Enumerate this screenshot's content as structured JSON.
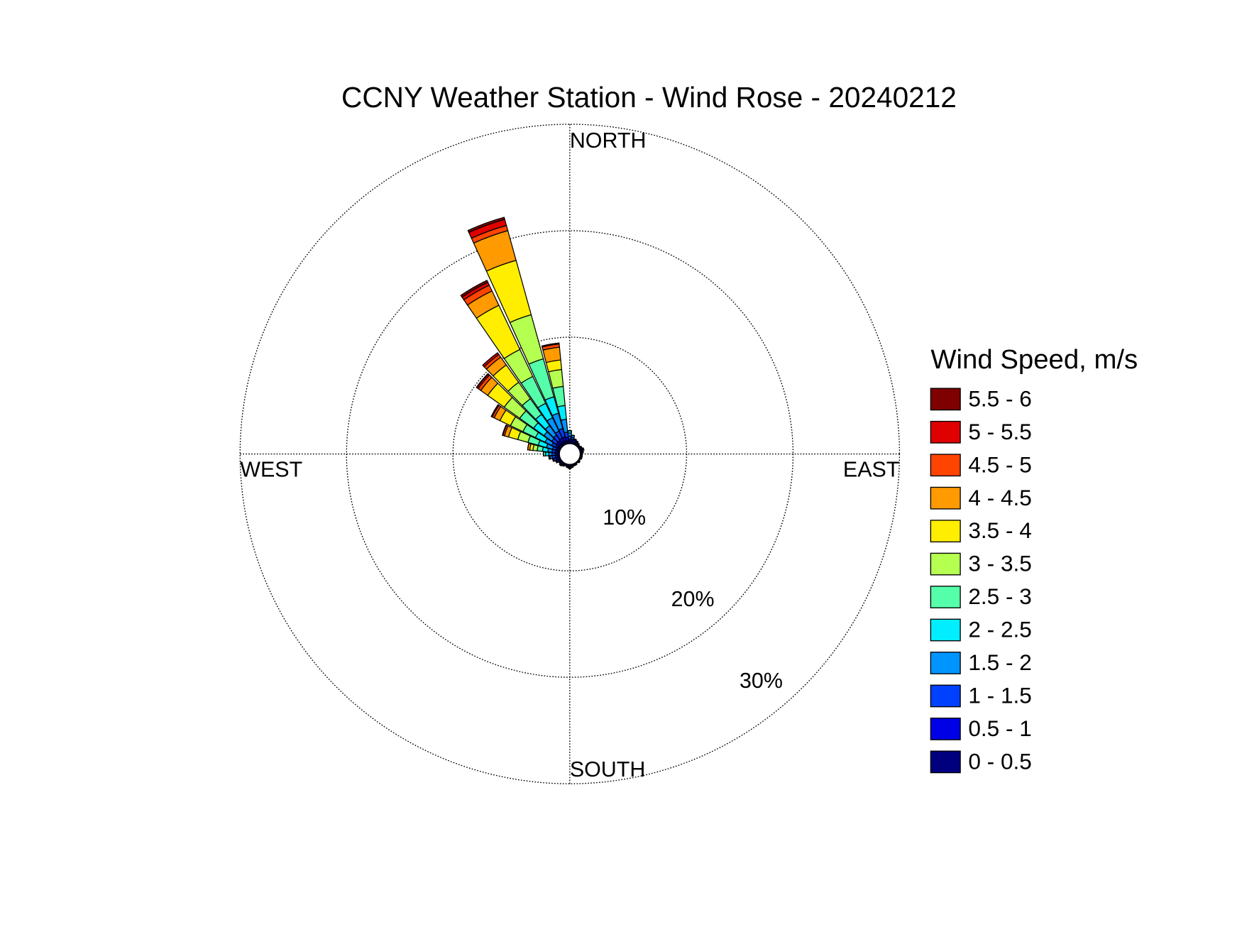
{
  "chart_data": {
    "type": "windrose",
    "title": "CCNY Weather Station - Wind Rose - 20240212",
    "legend_title": "Wind Speed, m/s",
    "direction_labels": {
      "north": "NORTH",
      "east": "EAST",
      "south": "SOUTH",
      "west": "WEST"
    },
    "directions": [
      0,
      10,
      20,
      30,
      40,
      50,
      60,
      70,
      80,
      90,
      100,
      110,
      120,
      130,
      140,
      150,
      160,
      170,
      180,
      190,
      200,
      210,
      220,
      230,
      240,
      250,
      260,
      270,
      280,
      290,
      300,
      310,
      320,
      330,
      340,
      350
    ],
    "sector_width": 9,
    "rlim": [
      0,
      30
    ],
    "rticks": [
      {
        "value": 10,
        "label": "10%"
      },
      {
        "value": 20,
        "label": "20%"
      },
      {
        "value": 30,
        "label": "30%"
      }
    ],
    "grid": true,
    "legend": "right",
    "series": [
      {
        "name": "0 - 0.5",
        "color": "#00007f",
        "values": [
          0.2,
          0.2,
          0.2,
          0.2,
          0.2,
          0.1,
          0.2,
          0.2,
          0.2,
          0.1,
          0.1,
          0.1,
          0.1,
          0.1,
          0.1,
          0.1,
          0.1,
          0.1,
          0.2,
          0.2,
          0.1,
          0.2,
          0.2,
          0.2,
          0.2,
          0.2,
          0.2,
          0.2,
          0.2,
          0.2,
          0.3,
          0.3,
          0.3,
          0.3,
          0.3,
          0.3
        ]
      },
      {
        "name": "0.5 - 1",
        "color": "#0000e6",
        "values": [
          0.2,
          0.2,
          0.2,
          0.1,
          0.1,
          0.1,
          0.1,
          0.1,
          0.1,
          0.1,
          0.1,
          0.1,
          0,
          0.1,
          0,
          0.1,
          0.1,
          0.1,
          0.1,
          0.1,
          0.1,
          0.1,
          0.1,
          0.1,
          0.2,
          0.2,
          0.2,
          0.2,
          0.2,
          0.2,
          0.2,
          0.3,
          0.3,
          0.4,
          0.4,
          0.3
        ]
      },
      {
        "name": "1 - 1.5",
        "color": "#0040ff",
        "values": [
          0.3,
          0.2,
          0.1,
          0.1,
          0,
          0,
          0,
          0.1,
          0,
          0,
          0,
          0,
          0,
          0,
          0,
          0,
          0,
          0.1,
          0.1,
          0,
          0,
          0,
          0.1,
          0,
          0.1,
          0.2,
          0.3,
          0.3,
          0.3,
          0.3,
          0.4,
          0.5,
          0.6,
          0.7,
          0.8,
          0.5
        ]
      },
      {
        "name": "1.5 - 2",
        "color": "#0094ff",
        "values": [
          0.3,
          0.2,
          0,
          0,
          0,
          0,
          0,
          0,
          0,
          0,
          0,
          0,
          0,
          0,
          0,
          0,
          0,
          0,
          0,
          0,
          0,
          0,
          0,
          0,
          0,
          0.1,
          0.2,
          0.3,
          0.4,
          0.6,
          0.7,
          0.9,
          1.1,
          1.4,
          1.5,
          1.2
        ]
      },
      {
        "name": "2 - 2.5",
        "color": "#00eeff",
        "values": [
          0.2,
          0,
          0,
          0,
          0,
          0,
          0,
          0,
          0,
          0,
          0,
          0,
          0,
          0,
          0,
          0,
          0,
          0,
          0,
          0,
          0,
          0,
          0,
          0,
          0,
          0,
          0.1,
          0.3,
          0.5,
          0.8,
          1.0,
          1.2,
          1.3,
          1.5,
          1.6,
          1.3
        ]
      },
      {
        "name": "2.5 - 3",
        "color": "#55ffaa",
        "values": [
          0,
          0,
          0,
          0,
          0,
          0,
          0,
          0,
          0,
          0,
          0,
          0,
          0,
          0,
          0,
          0,
          0,
          0,
          0,
          0,
          0,
          0,
          0,
          0,
          0,
          0,
          0,
          0.2,
          0.5,
          1.0,
          1.3,
          1.6,
          1.8,
          2.8,
          3.7,
          1.8
        ]
      },
      {
        "name": "3 - 3.5",
        "color": "#b4ff50",
        "values": [
          0,
          0,
          0,
          0,
          0,
          0,
          0,
          0,
          0,
          0,
          0,
          0,
          0,
          0,
          0,
          0,
          0,
          0,
          0,
          0,
          0,
          0,
          0,
          0,
          0,
          0,
          0,
          0,
          0.4,
          1.0,
          1.3,
          1.8,
          1.9,
          2.8,
          4.3,
          1.6
        ]
      },
      {
        "name": "3.5 - 4",
        "color": "#ffee00",
        "values": [
          0,
          0,
          0,
          0,
          0,
          0,
          0,
          0,
          0,
          0,
          0,
          0,
          0,
          0,
          0,
          0,
          0,
          0,
          0,
          0,
          0,
          0,
          0,
          0,
          0,
          0,
          0,
          0,
          0.3,
          0.9,
          1.1,
          1.9,
          2.0,
          4.6,
          5.3,
          0.9
        ]
      },
      {
        "name": "4 - 4.5",
        "color": "#ff9a00",
        "values": [
          0,
          0,
          0,
          0,
          0,
          0,
          0,
          0,
          0,
          0,
          0,
          0,
          0,
          0,
          0,
          0,
          0,
          0,
          0,
          0,
          0,
          0,
          0,
          0,
          0,
          0,
          0,
          0,
          0.2,
          0.4,
          0.6,
          0.8,
          0.9,
          1.5,
          2.9,
          1.2
        ]
      },
      {
        "name": "4.5 - 5",
        "color": "#ff4400",
        "values": [
          0,
          0,
          0,
          0,
          0,
          0,
          0,
          0,
          0,
          0,
          0,
          0,
          0,
          0,
          0,
          0,
          0,
          0,
          0,
          0,
          0,
          0,
          0,
          0,
          0,
          0,
          0,
          0,
          0,
          0.15,
          0.2,
          0.3,
          0.3,
          0.6,
          0.5,
          0.3
        ]
      },
      {
        "name": "5 - 5.5",
        "color": "#e00000",
        "values": [
          0,
          0,
          0,
          0,
          0,
          0,
          0,
          0,
          0,
          0,
          0,
          0,
          0,
          0,
          0,
          0,
          0,
          0,
          0,
          0,
          0,
          0,
          0,
          0,
          0,
          0,
          0,
          0,
          0,
          0.05,
          0.1,
          0.15,
          0.2,
          0.3,
          0.6,
          0.1
        ]
      },
      {
        "name": "5.5 - 6",
        "color": "#7f0000",
        "values": [
          0,
          0,
          0,
          0,
          0,
          0,
          0,
          0,
          0,
          0,
          0,
          0,
          0,
          0,
          0,
          0,
          0,
          0,
          0,
          0,
          0,
          0,
          0,
          0,
          0,
          0,
          0,
          0,
          0,
          0,
          0,
          0.05,
          0,
          0.2,
          0.2,
          0
        ]
      }
    ]
  }
}
